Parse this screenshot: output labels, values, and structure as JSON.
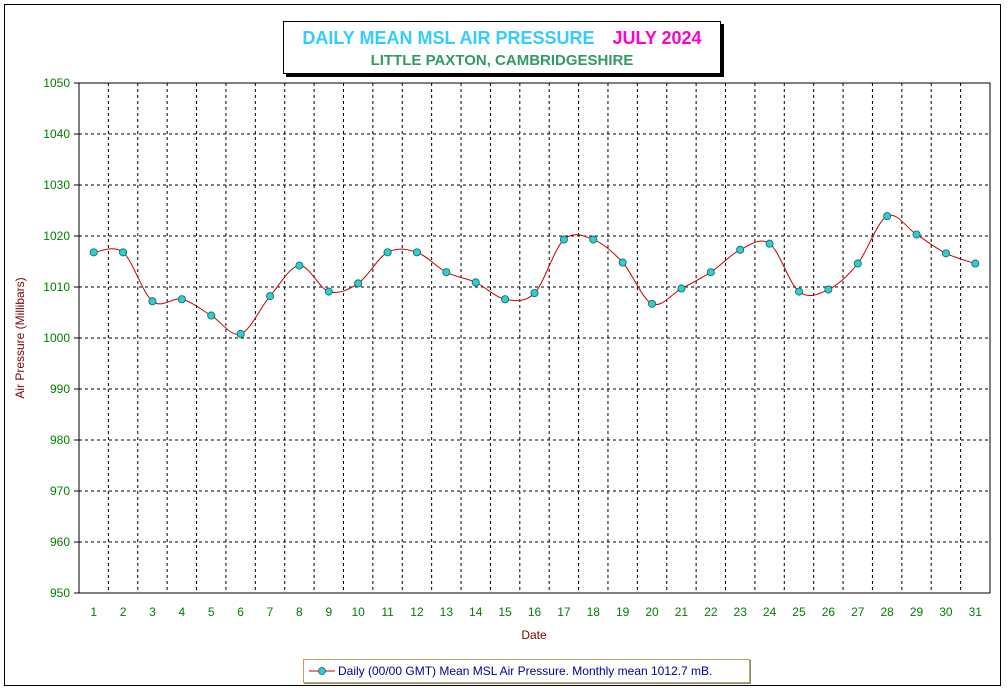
{
  "chart_data": {
    "type": "line",
    "title": "DAILY MEAN MSL AIR PRESSURE",
    "title_month": "JULY 2024",
    "subtitle": "LITTLE PAXTON, CAMBRIDGESHIRE",
    "xlabel": "Date",
    "ylabel": "Air Pressure (Millibars)",
    "ylim": [
      950,
      1050
    ],
    "yticks": [
      950,
      960,
      970,
      980,
      990,
      1000,
      1010,
      1020,
      1030,
      1040,
      1050
    ],
    "x": [
      1,
      2,
      3,
      4,
      5,
      6,
      7,
      8,
      9,
      10,
      11,
      12,
      13,
      14,
      15,
      16,
      17,
      18,
      19,
      20,
      21,
      22,
      23,
      24,
      25,
      26,
      27,
      28,
      29,
      30,
      31
    ],
    "series": [
      {
        "name": "Daily (00/00 GMT) Mean MSL Air Pressure. Monthly mean 1012.7 mB.",
        "values": [
          1016.8,
          1016.8,
          1007.2,
          1007.6,
          1004.4,
          1000.8,
          1008.2,
          1014.2,
          1009.1,
          1010.7,
          1016.8,
          1016.8,
          1012.9,
          1010.9,
          1007.6,
          1008.8,
          1019.3,
          1019.3,
          1014.8,
          1006.7,
          1009.7,
          1012.9,
          1017.3,
          1018.5,
          1009.1,
          1009.5,
          1014.6,
          1023.9,
          1020.3,
          1016.6,
          1014.6
        ]
      }
    ],
    "grid": true,
    "legend_position": "bottom-center",
    "colors": {
      "line": "#cc0000",
      "marker_fill": "#33cccc",
      "marker_edge": "#006666",
      "tick_labels": "#008000",
      "axis_titles": "#800000",
      "legend_text": "#000099"
    }
  }
}
